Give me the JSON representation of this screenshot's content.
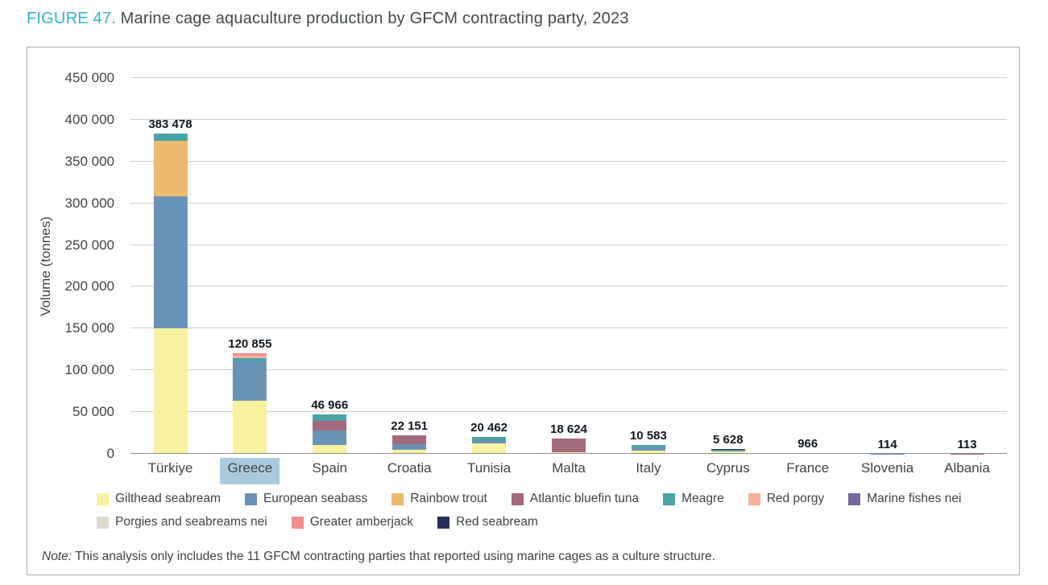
{
  "figure": {
    "label": "FIGURE 47.",
    "title": " Marine cage aquaculture production by GFCM contracting party, 2023"
  },
  "chart_data": {
    "type": "bar",
    "stacked": true,
    "title": "Marine cage aquaculture production by GFCM contracting party, 2023",
    "xlabel": "",
    "ylabel": "Volume (tonnes)",
    "ylim": [
      0,
      450000
    ],
    "ytick_step": 50000,
    "ytick_labels": [
      "0",
      "50 000",
      "100 000",
      "150 000",
      "200 000",
      "250 000",
      "300 000",
      "350 000",
      "400 000",
      "450 000"
    ],
    "grid": "horizontal",
    "legend_position": "bottom",
    "categories": [
      "Türkiye",
      "Greece",
      "Spain",
      "Croatia",
      "Tunisia",
      "Malta",
      "Italy",
      "Cyprus",
      "France",
      "Slovenia",
      "Albania"
    ],
    "totals": [
      383478,
      120855,
      46966,
      22151,
      20462,
      18624,
      10583,
      5628,
      966,
      114,
      113
    ],
    "total_labels": [
      "383 478",
      "120 855",
      "46 966",
      "22 151",
      "20 462",
      "18 624",
      "10 583",
      "5 628",
      "966",
      "114",
      "113"
    ],
    "highlighted_category": "Greece",
    "series": [
      {
        "name": "Gilthead seabream",
        "color": "#f8f1a0",
        "values": [
          150000,
          64000,
          11000,
          5000,
          13000,
          1500,
          4000,
          3000,
          0,
          0,
          0
        ]
      },
      {
        "name": "European seabass",
        "color": "#6a92b5",
        "values": [
          158000,
          46855,
          17000,
          7000,
          3500,
          0,
          3500,
          1200,
          966,
          114,
          0
        ]
      },
      {
        "name": "Rainbow trout",
        "color": "#ebba6e",
        "values": [
          67000,
          0,
          0,
          0,
          0,
          0,
          0,
          0,
          0,
          0,
          0
        ]
      },
      {
        "name": "Atlantic bluefin tuna",
        "color": "#a3697c",
        "values": [
          0,
          0,
          12000,
          10151,
          0,
          17124,
          0,
          0,
          0,
          0,
          113
        ]
      },
      {
        "name": "Meagre",
        "color": "#4aa3a4",
        "values": [
          8478,
          4000,
          6966,
          0,
          3962,
          0,
          3083,
          800,
          0,
          0,
          0
        ]
      },
      {
        "name": "Red porgy",
        "color": "#f4b29c",
        "values": [
          0,
          3000,
          0,
          0,
          0,
          0,
          0,
          0,
          0,
          0,
          0
        ]
      },
      {
        "name": "Marine fishes nei",
        "color": "#77679f",
        "values": [
          0,
          0,
          0,
          0,
          0,
          0,
          0,
          0,
          0,
          0,
          0
        ]
      },
      {
        "name": "Porgies and seabreams nei",
        "color": "#dddacc",
        "values": [
          0,
          0,
          0,
          0,
          0,
          0,
          0,
          0,
          0,
          0,
          0
        ]
      },
      {
        "name": "Greater amberjack",
        "color": "#f08d8a",
        "values": [
          0,
          3000,
          0,
          0,
          0,
          0,
          0,
          0,
          0,
          0,
          0
        ]
      },
      {
        "name": "Red seabream",
        "color": "#25305a",
        "values": [
          0,
          0,
          0,
          0,
          0,
          0,
          0,
          628,
          0,
          0,
          0
        ]
      }
    ]
  },
  "note": {
    "prefix": "Note:",
    "text": " This analysis only includes the 11 GFCM contracting parties that reported using marine cages as a culture structure."
  }
}
